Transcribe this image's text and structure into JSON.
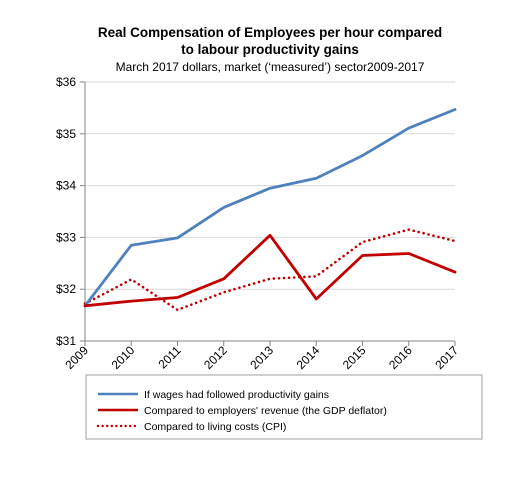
{
  "chart_data": {
    "type": "line",
    "title_line1": "Real Compensation of Employees per hour compared",
    "title_line2": "to labour productivity gains",
    "subtitle": "March 2017 dollars, market (‘measured’) sector2009-2017",
    "xlabel": "",
    "ylabel": "",
    "x": [
      "2009",
      "2010",
      "2011",
      "2012",
      "2013",
      "2014",
      "2015",
      "2016",
      "2017"
    ],
    "ylim": [
      31,
      36
    ],
    "yticks": [
      31,
      32,
      33,
      34,
      35,
      36
    ],
    "ytick_labels": [
      "$31",
      "$32",
      "$33",
      "$34",
      "$35",
      "$36"
    ],
    "grid": true,
    "legend_position": "bottom",
    "series": [
      {
        "name": "If wages had followed productivity gains",
        "values": [
          31.68,
          32.85,
          32.99,
          33.58,
          33.95,
          34.14,
          34.58,
          35.11,
          35.47
        ],
        "color": "#4F81BD",
        "style": "solid"
      },
      {
        "name": "Compared to employers' revenue (the GDP deflator)",
        "values": [
          31.68,
          31.77,
          31.84,
          32.2,
          33.04,
          31.81,
          32.65,
          32.69,
          32.33
        ],
        "color": "#C00000",
        "style": "solid"
      },
      {
        "name": "Compared to living costs (CPI)",
        "values": [
          31.72,
          32.19,
          31.6,
          31.94,
          32.2,
          32.25,
          32.91,
          33.15,
          32.93
        ],
        "color": "#C00000",
        "style": "dotted"
      }
    ]
  }
}
